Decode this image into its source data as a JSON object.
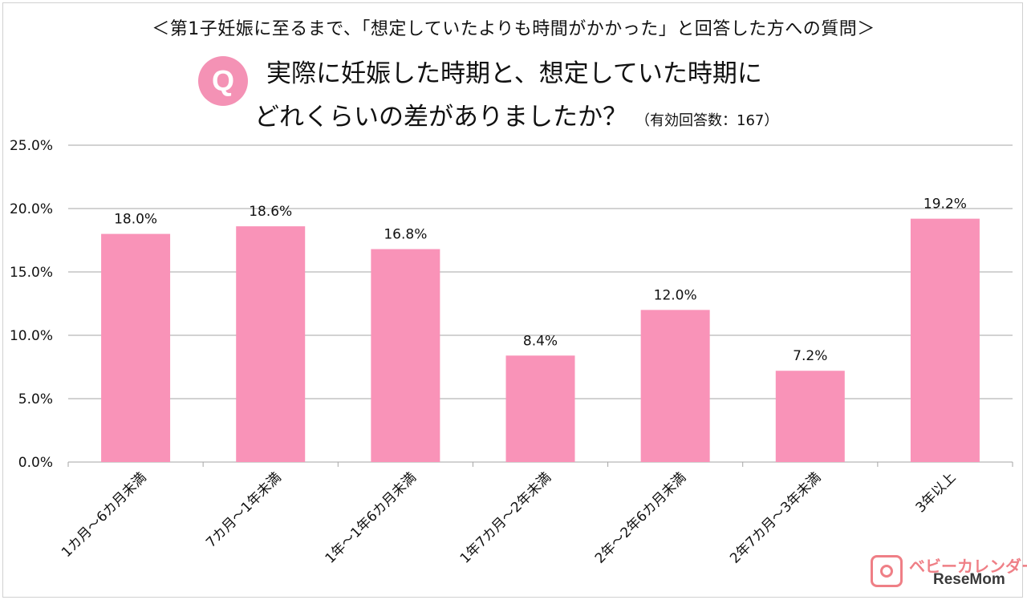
{
  "header": {
    "note": "＜第1子妊娠に至るまで、「想定していたよりも時間がかかった」と回答した方への質問＞",
    "q_badge": "Q",
    "question_line1": "実際に妊娠した時期と、想定していた時期に",
    "question_line2": "どれくらいの差がありましたか？",
    "sample_note": "（有効回答数：167）"
  },
  "chart_data": {
    "type": "bar",
    "title": "実際に妊娠した時期と、想定していた時期にどれくらいの差がありましたか？",
    "categories": [
      "1カ月～6カ月未満",
      "7カ月～1年未満",
      "1年～1年6カ月未満",
      "1年7カ月～2年未満",
      "2年～2年6カ月未満",
      "2年7カ月～3年未満",
      "3年以上"
    ],
    "values": [
      18.0,
      18.6,
      16.8,
      8.4,
      12.0,
      7.2,
      19.2
    ],
    "value_labels": [
      "18.0%",
      "18.6%",
      "16.8%",
      "8.4%",
      "12.0%",
      "7.2%",
      "19.2%"
    ],
    "y_ticks": [
      "0.0%",
      "5.0%",
      "10.0%",
      "15.0%",
      "20.0%",
      "25.0%"
    ],
    "ylim": [
      0,
      25
    ],
    "grid": true,
    "legend": "none",
    "bar_color": "#f993b8",
    "grid_color": "#a6a6a6"
  },
  "logo": {
    "line1": "ベビーカレンダー",
    "line2": "ReseMom"
  }
}
